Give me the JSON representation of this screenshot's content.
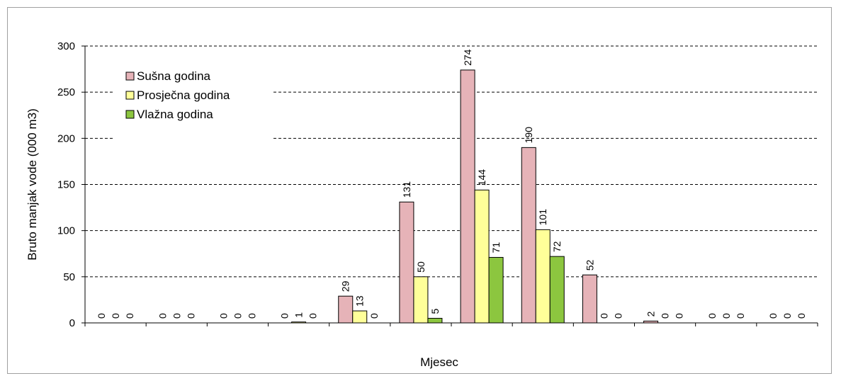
{
  "chart_data": {
    "type": "bar",
    "title": "",
    "xlabel": "Mjesec",
    "ylabel": "Bruto manjak vode (000 m3)",
    "ylim": [
      0,
      300
    ],
    "yticks": [
      0,
      50,
      100,
      150,
      200,
      250,
      300
    ],
    "categories": [
      "",
      "",
      "",
      "",
      "",
      "",
      "",
      "",
      "",
      "",
      "",
      ""
    ],
    "grid": "horizontal dashed",
    "legend_position": "top-left",
    "series": [
      {
        "name": "Sušna godina",
        "color": "#e6b3b8",
        "values": [
          0,
          0,
          0,
          0,
          29,
          131,
          274,
          190,
          52,
          2,
          0,
          0
        ],
        "labels": [
          "0",
          "0",
          "0",
          "0",
          "29",
          "131",
          "274",
          "190",
          "52",
          "2",
          "0",
          "0"
        ]
      },
      {
        "name": "Prosječna godina",
        "color": "#ffff99",
        "values": [
          0,
          0,
          0,
          1,
          13,
          50,
          144,
          101,
          0,
          0,
          0,
          0
        ],
        "labels": [
          "0",
          "0",
          "0",
          "1",
          "13",
          "50",
          "144",
          "101",
          "0",
          "0",
          "0",
          "0"
        ]
      },
      {
        "name": "Vlažna godina",
        "color": "#8cc63f",
        "values": [
          0,
          0,
          0,
          0,
          0,
          5,
          71,
          72,
          0,
          0,
          0,
          0
        ],
        "labels": [
          "0",
          "0",
          "0",
          "0",
          "0",
          "5",
          "71",
          "72",
          "0",
          "0",
          "0",
          "0"
        ]
      }
    ]
  }
}
